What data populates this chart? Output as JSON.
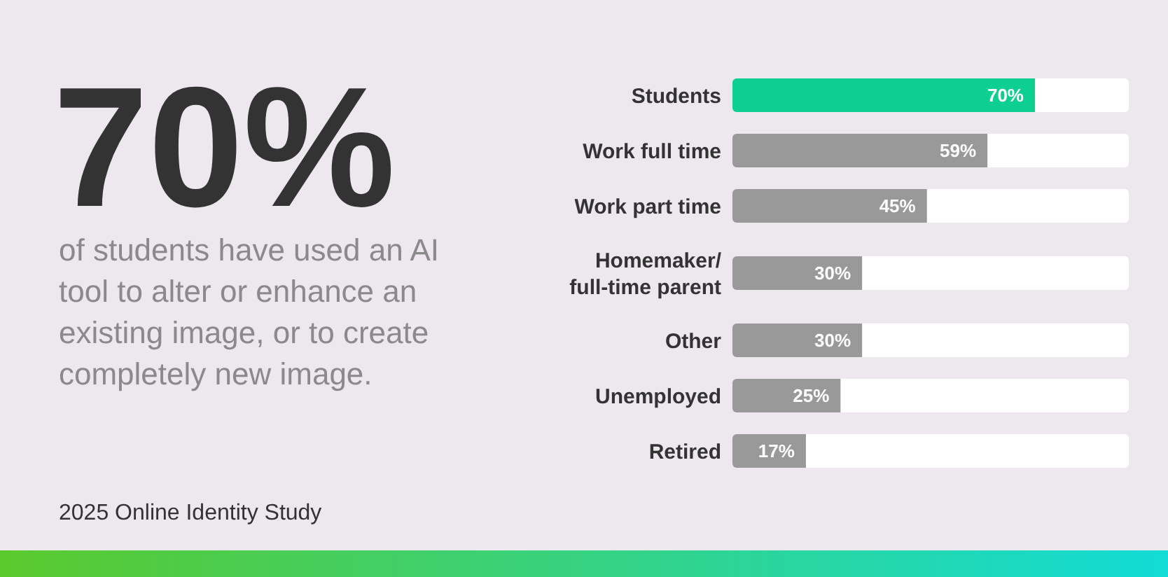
{
  "chart_data": {
    "type": "bar",
    "orientation": "horizontal",
    "title": "70%",
    "subtitle": "of students have used an AI tool to alter or enhance an existing image, or to create completely new image.",
    "annotations": [
      "2025 Online Identity Study"
    ],
    "categories": [
      "Students",
      "Work full time",
      "Work part time",
      "Homemaker/ full-time parent",
      "Other",
      "Unemployed",
      "Retired"
    ],
    "values": [
      70,
      59,
      45,
      30,
      30,
      25,
      17
    ],
    "value_labels": [
      "70%",
      "59%",
      "45%",
      "30%",
      "30%",
      "25%",
      "17%"
    ],
    "colors": [
      "#0ccf90",
      "#999999",
      "#999999",
      "#999999",
      "#999999",
      "#999999",
      "#999999"
    ],
    "tick_labels": "y"
  }
}
